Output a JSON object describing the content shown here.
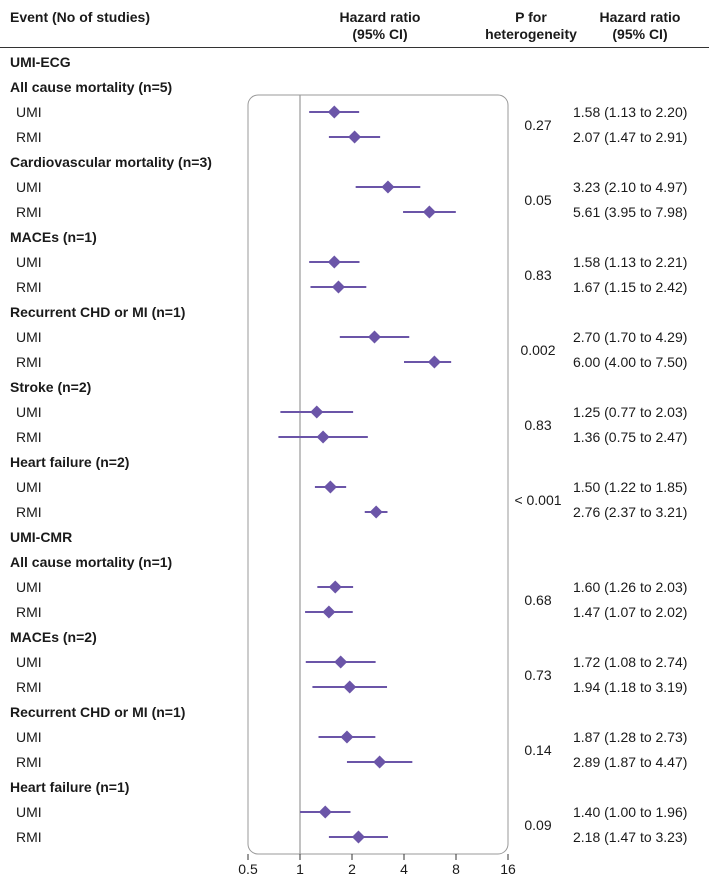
{
  "header": {
    "event": "Event (No of studies)",
    "hr_plot_line1": "Hazard ratio",
    "hr_plot_line2": "(95% CI)",
    "p_line1": "P for",
    "p_line2": "heterogeneity",
    "hr_text_line1": "Hazard ratio",
    "hr_text_line2": "(95% CI)"
  },
  "chart_data": {
    "type": "forest",
    "xscale": "log2",
    "xlim": [
      0.5,
      16
    ],
    "xticks": [
      "0.5",
      "1",
      "2",
      "4",
      "8",
      "16"
    ],
    "reference_line": 1,
    "sections": [
      {
        "title": "UMI-ECG",
        "groups": [
          {
            "title": "All cause mortality (n=5)",
            "p": "0.27",
            "rows": [
              {
                "label": "UMI",
                "hr": 1.58,
                "lo": 1.13,
                "hi": 2.2,
                "text": "1.58 (1.13 to 2.20)"
              },
              {
                "label": "RMI",
                "hr": 2.07,
                "lo": 1.47,
                "hi": 2.91,
                "text": "2.07 (1.47 to 2.91)"
              }
            ]
          },
          {
            "title": "Cardiovascular mortality (n=3)",
            "p": "0.05",
            "rows": [
              {
                "label": "UMI",
                "hr": 3.23,
                "lo": 2.1,
                "hi": 4.97,
                "text": "3.23 (2.10 to 4.97)"
              },
              {
                "label": "RMI",
                "hr": 5.61,
                "lo": 3.95,
                "hi": 7.98,
                "text": "5.61 (3.95 to 7.98)"
              }
            ]
          },
          {
            "title": "MACEs (n=1)",
            "p": "0.83",
            "rows": [
              {
                "label": "UMI",
                "hr": 1.58,
                "lo": 1.13,
                "hi": 2.21,
                "text": "1.58 (1.13 to 2.21)"
              },
              {
                "label": "RMI",
                "hr": 1.67,
                "lo": 1.15,
                "hi": 2.42,
                "text": "1.67 (1.15 to 2.42)"
              }
            ]
          },
          {
            "title": "Recurrent CHD or MI (n=1)",
            "p": "0.002",
            "rows": [
              {
                "label": "UMI",
                "hr": 2.7,
                "lo": 1.7,
                "hi": 4.29,
                "text": "2.70 (1.70 to 4.29)"
              },
              {
                "label": "RMI",
                "hr": 6.0,
                "lo": 4.0,
                "hi": 7.5,
                "text": "6.00 (4.00 to 7.50)"
              }
            ]
          },
          {
            "title": "Stroke (n=2)",
            "p": "0.83",
            "rows": [
              {
                "label": "UMI",
                "hr": 1.25,
                "lo": 0.77,
                "hi": 2.03,
                "text": "1.25 (0.77 to 2.03)"
              },
              {
                "label": "RMI",
                "hr": 1.36,
                "lo": 0.75,
                "hi": 2.47,
                "text": "1.36 (0.75 to 2.47)"
              }
            ]
          },
          {
            "title": "Heart failure (n=2)",
            "p": "< 0.001",
            "rows": [
              {
                "label": "UMI",
                "hr": 1.5,
                "lo": 1.22,
                "hi": 1.85,
                "text": "1.50 (1.22 to 1.85)"
              },
              {
                "label": "RMI",
                "hr": 2.76,
                "lo": 2.37,
                "hi": 3.21,
                "text": "2.76 (2.37 to 3.21)"
              }
            ]
          }
        ]
      },
      {
        "title": "UMI-CMR",
        "groups": [
          {
            "title": "All cause mortality (n=1)",
            "p": "0.68",
            "rows": [
              {
                "label": "UMI",
                "hr": 1.6,
                "lo": 1.26,
                "hi": 2.03,
                "text": "1.60 (1.26 to 2.03)"
              },
              {
                "label": "RMI",
                "hr": 1.47,
                "lo": 1.07,
                "hi": 2.02,
                "text": "1.47 (1.07 to 2.02)"
              }
            ]
          },
          {
            "title": "MACEs (n=2)",
            "p": "0.73",
            "rows": [
              {
                "label": "UMI",
                "hr": 1.72,
                "lo": 1.08,
                "hi": 2.74,
                "text": "1.72 (1.08 to 2.74)"
              },
              {
                "label": "RMI",
                "hr": 1.94,
                "lo": 1.18,
                "hi": 3.19,
                "text": "1.94 (1.18 to 3.19)"
              }
            ]
          },
          {
            "title": "Recurrent CHD or MI (n=1)",
            "p": "0.14",
            "rows": [
              {
                "label": "UMI",
                "hr": 1.87,
                "lo": 1.28,
                "hi": 2.73,
                "text": "1.87 (1.28 to 2.73)"
              },
              {
                "label": "RMI",
                "hr": 2.89,
                "lo": 1.87,
                "hi": 4.47,
                "text": "2.89 (1.87 to 4.47)"
              }
            ]
          },
          {
            "title": "Heart failure (n=1)",
            "p": "0.09",
            "rows": [
              {
                "label": "UMI",
                "hr": 1.4,
                "lo": 1.0,
                "hi": 1.96,
                "text": "1.40 (1.00 to 1.96)"
              },
              {
                "label": "RMI",
                "hr": 2.18,
                "lo": 1.47,
                "hi": 3.23,
                "text": "2.18 (1.47 to 3.23)"
              }
            ]
          }
        ]
      }
    ]
  },
  "colors": {
    "marker": "#6b55a8",
    "ci_line": "#6b55a8",
    "box": "#999999",
    "ref_line": "#999999"
  }
}
